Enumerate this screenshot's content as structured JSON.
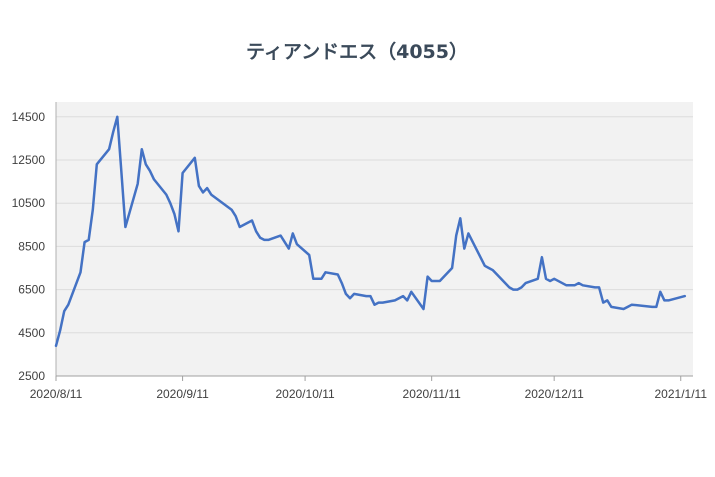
{
  "chart_data": {
    "type": "line",
    "title": "ティアンドエス（4055）",
    "xlabel": "",
    "ylabel": "",
    "ylim": [
      2500,
      15000
    ],
    "yticks": [
      2500,
      4500,
      6500,
      8500,
      10500,
      12500,
      14500
    ],
    "xticks": [
      "2020/8/11",
      "2020/9/11",
      "2020/10/11",
      "2020/11/11",
      "2020/12/11",
      "2021/1/11"
    ],
    "grid": true,
    "legend": "none",
    "line_color": "#4472c4",
    "plot_background": "#f2f2f2",
    "x": [
      "2020/8/11",
      "2020/8/12",
      "2020/8/13",
      "2020/8/14",
      "2020/8/17",
      "2020/8/18",
      "2020/8/19",
      "2020/8/20",
      "2020/8/21",
      "2020/8/24",
      "2020/8/25",
      "2020/8/26",
      "2020/8/27",
      "2020/8/28",
      "2020/8/31",
      "2020/9/1",
      "2020/9/2",
      "2020/9/3",
      "2020/9/4",
      "2020/9/7",
      "2020/9/8",
      "2020/9/9",
      "2020/9/10",
      "2020/9/11",
      "2020/9/14",
      "2020/9/15",
      "2020/9/16",
      "2020/9/17",
      "2020/9/18",
      "2020/9/23",
      "2020/9/24",
      "2020/9/25",
      "2020/9/28",
      "2020/9/29",
      "2020/9/30",
      "2020/10/1",
      "2020/10/2",
      "2020/10/5",
      "2020/10/6",
      "2020/10/7",
      "2020/10/8",
      "2020/10/9",
      "2020/10/12",
      "2020/10/13",
      "2020/10/14",
      "2020/10/15",
      "2020/10/16",
      "2020/10/19",
      "2020/10/20",
      "2020/10/21",
      "2020/10/22",
      "2020/10/23",
      "2020/10/26",
      "2020/10/27",
      "2020/10/28",
      "2020/10/29",
      "2020/10/30",
      "2020/11/2",
      "2020/11/4",
      "2020/11/5",
      "2020/11/6",
      "2020/11/9",
      "2020/11/10",
      "2020/11/11",
      "2020/11/12",
      "2020/11/13",
      "2020/11/16",
      "2020/11/17",
      "2020/11/18",
      "2020/11/19",
      "2020/11/20",
      "2020/11/24",
      "2020/11/25",
      "2020/11/26",
      "2020/11/27",
      "2020/11/30",
      "2020/12/1",
      "2020/12/2",
      "2020/12/3",
      "2020/12/4",
      "2020/12/7",
      "2020/12/8",
      "2020/12/9",
      "2020/12/10",
      "2020/12/11",
      "2020/12/14",
      "2020/12/15",
      "2020/12/16",
      "2020/12/17",
      "2020/12/18",
      "2020/12/21",
      "2020/12/22",
      "2020/12/23",
      "2020/12/24",
      "2020/12/25",
      "2020/12/28",
      "2020/12/29",
      "2020/12/30",
      "2021/1/4",
      "2021/1/5",
      "2021/1/6",
      "2021/1/7",
      "2021/1/8",
      "2021/1/12"
    ],
    "series": [
      {
        "values": [
          3900,
          4600,
          5500,
          5800,
          7300,
          8700,
          8800,
          10200,
          12300,
          13000,
          13800,
          14500,
          12000,
          9400,
          11400,
          13000,
          12300,
          12000,
          11600,
          10900,
          10500,
          10000,
          9200,
          11900,
          12600,
          11300,
          11000,
          11200,
          10900,
          10200,
          9900,
          9400,
          9700,
          9200,
          8900,
          8800,
          8800,
          9000,
          8700,
          8400,
          9100,
          8600,
          8100,
          7000,
          7000,
          7000,
          7300,
          7200,
          6800,
          6300,
          6100,
          6300,
          6200,
          6200,
          5800,
          5900,
          5900,
          6000,
          6200,
          6000,
          6400,
          5600,
          7100,
          6900,
          6900,
          6900,
          7500,
          9000,
          9800,
          8400,
          9100,
          7600,
          7500,
          7400,
          7200,
          6600,
          6500,
          6500,
          6600,
          6800,
          7000,
          8000,
          7000,
          6900,
          7000,
          6700,
          6700,
          6700,
          6800,
          6700,
          6600,
          6600,
          5900,
          6000,
          5700,
          5600,
          5700,
          5800,
          5700,
          5700,
          6400,
          6000,
          6000,
          6200
        ]
      }
    ]
  }
}
